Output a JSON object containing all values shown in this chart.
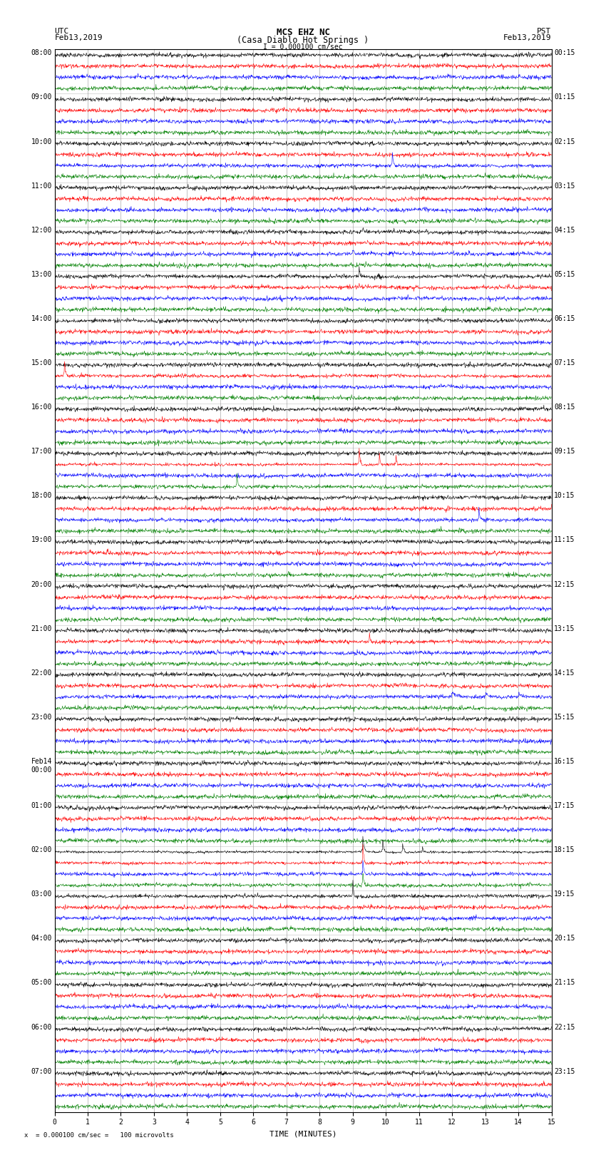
{
  "title_line1": "MCS EHZ NC",
  "title_line2": "(Casa Diablo Hot Springs )",
  "scale_text": "I = 0.000100 cm/sec",
  "bottom_note": "x  = 0.000100 cm/sec =   100 microvolts",
  "utc_label": "UTC",
  "utc_date": "Feb13,2019",
  "pst_label": "PST",
  "pst_date": "Feb13,2019",
  "xlabel": "TIME (MINUTES)",
  "xlim": [
    0,
    15
  ],
  "xticks": [
    0,
    1,
    2,
    3,
    4,
    5,
    6,
    7,
    8,
    9,
    10,
    11,
    12,
    13,
    14,
    15
  ],
  "left_times": [
    "08:00",
    "09:00",
    "10:00",
    "11:00",
    "12:00",
    "13:00",
    "14:00",
    "15:00",
    "16:00",
    "17:00",
    "18:00",
    "19:00",
    "20:00",
    "21:00",
    "22:00",
    "23:00",
    "Feb14\n00:00",
    "01:00",
    "02:00",
    "03:00",
    "04:00",
    "05:00",
    "06:00",
    "07:00"
  ],
  "right_times": [
    "00:15",
    "01:15",
    "02:15",
    "03:15",
    "04:15",
    "05:15",
    "06:15",
    "07:15",
    "08:15",
    "09:15",
    "10:15",
    "11:15",
    "12:15",
    "13:15",
    "14:15",
    "15:15",
    "16:15",
    "17:15",
    "18:15",
    "19:15",
    "20:15",
    "21:15",
    "22:15",
    "23:15"
  ],
  "colors": [
    "black",
    "red",
    "blue",
    "green"
  ],
  "n_hours": 24,
  "traces_per_hour": 4,
  "background_color": "white",
  "grid_color": "#888888",
  "title_fontsize": 9,
  "label_fontsize": 8,
  "tick_fontsize": 7
}
